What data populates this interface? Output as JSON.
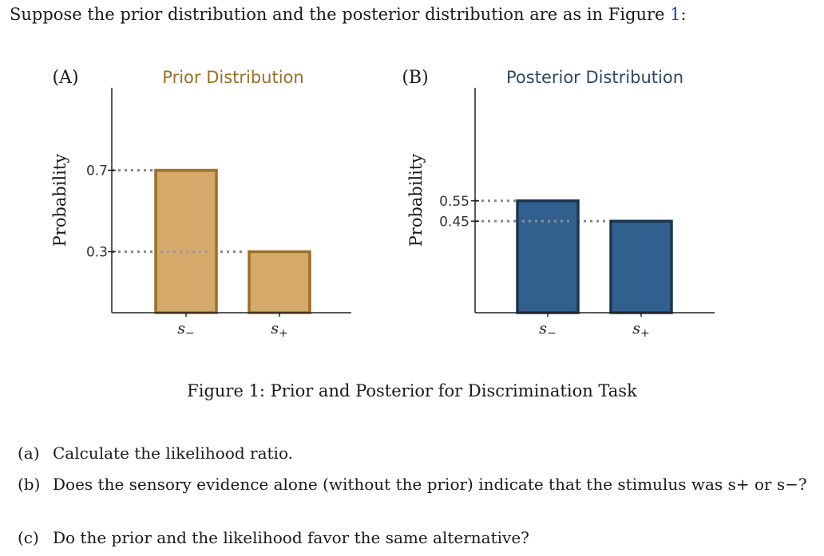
{
  "intro": {
    "text": "Suppose the prior distribution and the posterior distribution are as in Figure ",
    "ref": "1",
    "suffix": ":"
  },
  "chart_data": [
    {
      "type": "bar",
      "panel": "(A)",
      "title": "Prior Distribution",
      "ylabel": "Probability",
      "categories": [
        "s−",
        "s+"
      ],
      "values": [
        0.7,
        0.3
      ],
      "yticks": [
        "0.7",
        "0.3"
      ],
      "ylim": [
        0,
        1
      ],
      "color_fill": "#d4a96a",
      "color_edge": "#9a7024",
      "title_color": "#9a7024"
    },
    {
      "type": "bar",
      "panel": "(B)",
      "title": "Posterior Distribution",
      "ylabel": "Probability",
      "categories": [
        "s−",
        "s+"
      ],
      "values": [
        0.55,
        0.45
      ],
      "yticks": [
        "0.55",
        "0.45"
      ],
      "ylim": [
        0,
        1
      ],
      "color_fill": "#31608f",
      "color_edge": "#1c3651",
      "title_color": "#2a4a66"
    }
  ],
  "caption": "Figure 1: Prior and Posterior for Discrimination Task",
  "questions": [
    {
      "label": "(a)",
      "text": "Calculate the likelihood ratio."
    },
    {
      "label": "(b)",
      "text": "Does the sensory evidence alone (without the prior) indicate that the stimulus was s+ or s−?"
    },
    {
      "label": "(c)",
      "text": "Do the prior and the likelihood favor the same alternative?"
    }
  ]
}
